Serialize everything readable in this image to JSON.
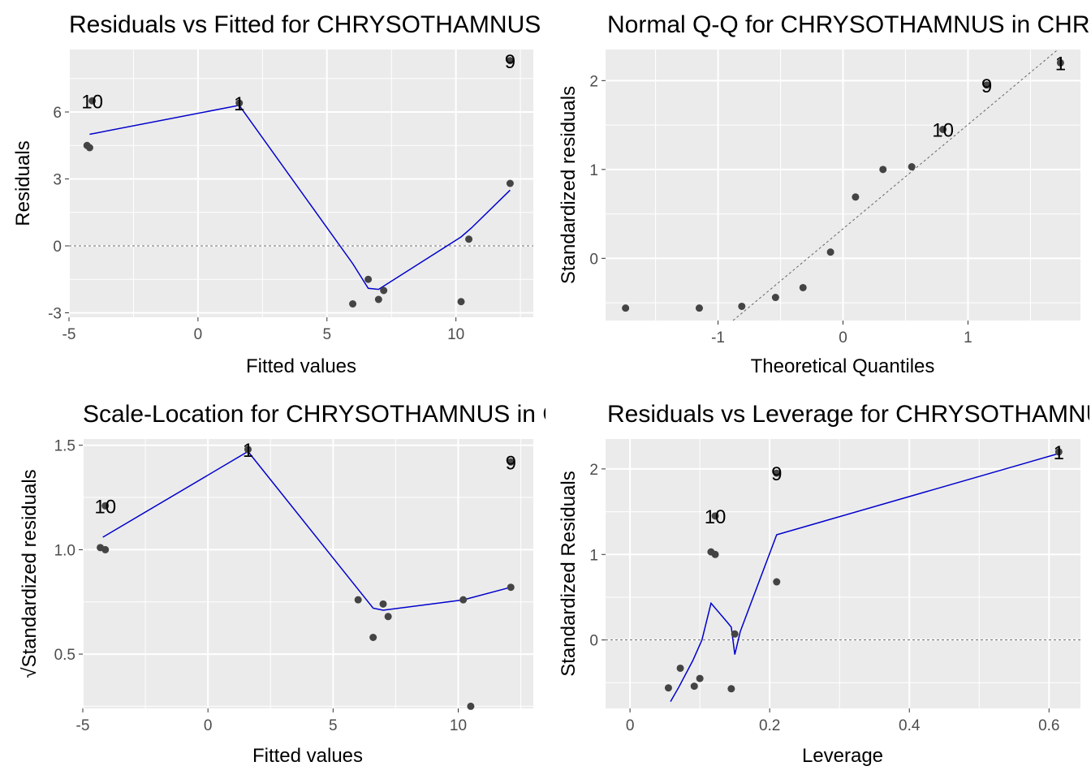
{
  "chart_data": [
    {
      "type": "scatter",
      "title": "Residuals vs Fitted for CHRYSOTHAMNUS in CHRYSOTHAMNUS",
      "xlabel": "Fitted values",
      "ylabel": "Residuals",
      "xlim": [
        -5,
        13
      ],
      "ylim": [
        -3.2,
        8.8
      ],
      "xticks": [
        -5,
        0,
        5,
        10
      ],
      "yticks": [
        -3,
        0,
        3,
        6
      ],
      "grid": true,
      "refline": {
        "type": "hline",
        "y": 0
      },
      "points": [
        {
          "x": -4.3,
          "y": 4.5
        },
        {
          "x": -4.2,
          "y": 4.4
        },
        {
          "x": -4.1,
          "y": 6.5,
          "label": "10"
        },
        {
          "x": 1.6,
          "y": 6.4,
          "label": "1"
        },
        {
          "x": 6.0,
          "y": -2.6
        },
        {
          "x": 6.6,
          "y": -1.5
        },
        {
          "x": 7.0,
          "y": -2.4
        },
        {
          "x": 7.2,
          "y": -2.0
        },
        {
          "x": 10.2,
          "y": -2.5
        },
        {
          "x": 10.5,
          "y": 0.3
        },
        {
          "x": 12.1,
          "y": 2.8
        },
        {
          "x": 12.1,
          "y": 8.3,
          "label": "9"
        }
      ],
      "smooth": [
        [
          -4.2,
          5.0
        ],
        [
          1.6,
          6.3
        ],
        [
          6.0,
          -0.8
        ],
        [
          6.6,
          -1.9
        ],
        [
          7.0,
          -1.95
        ],
        [
          10.2,
          0.4
        ],
        [
          10.6,
          0.8
        ],
        [
          12.1,
          2.5
        ]
      ]
    },
    {
      "type": "scatter",
      "title": "Normal Q-Q for CHRYSOTHAMNUS in CHRYSOTHAMNUS",
      "xlabel": "Theoretical Quantiles",
      "ylabel": "Standardized residuals",
      "xlim": [
        -1.9,
        1.9
      ],
      "ylim": [
        -0.7,
        2.35
      ],
      "xticks": [
        -1,
        0,
        1
      ],
      "yticks": [
        0,
        1,
        2
      ],
      "grid": true,
      "refline": {
        "type": "segment",
        "from": [
          -0.88,
          -0.7
        ],
        "to": [
          1.72,
          2.35
        ]
      },
      "points": [
        {
          "x": -1.74,
          "y": -0.56
        },
        {
          "x": -1.15,
          "y": -0.56
        },
        {
          "x": -0.81,
          "y": -0.54
        },
        {
          "x": -0.54,
          "y": -0.44
        },
        {
          "x": -0.32,
          "y": -0.33
        },
        {
          "x": -0.1,
          "y": 0.07
        },
        {
          "x": 0.1,
          "y": 0.69
        },
        {
          "x": 0.32,
          "y": 1.0
        },
        {
          "x": 0.55,
          "y": 1.03
        },
        {
          "x": 0.8,
          "y": 1.45,
          "label": "10"
        },
        {
          "x": 1.15,
          "y": 1.95,
          "label": "9"
        },
        {
          "x": 1.74,
          "y": 2.2,
          "label": "1"
        }
      ]
    },
    {
      "type": "scatter",
      "title": "Scale-Location for CHRYSOTHAMNUS in CHRYSOTHAMNUS",
      "xlabel": "Fitted values",
      "ylabel": "√Standardized residuals",
      "xlim": [
        -5,
        13
      ],
      "ylim": [
        0.24,
        1.53
      ],
      "xticks": [
        -5,
        0,
        5,
        10
      ],
      "yticks": [
        0.5,
        1.0,
        1.5
      ],
      "grid": true,
      "points": [
        {
          "x": -4.3,
          "y": 1.01
        },
        {
          "x": -4.1,
          "y": 1.0
        },
        {
          "x": -4.1,
          "y": 1.21,
          "label": "10"
        },
        {
          "x": 1.6,
          "y": 1.48,
          "label": "1"
        },
        {
          "x": 6.0,
          "y": 0.76
        },
        {
          "x": 6.6,
          "y": 0.58
        },
        {
          "x": 7.0,
          "y": 0.74
        },
        {
          "x": 7.2,
          "y": 0.68
        },
        {
          "x": 10.2,
          "y": 0.76
        },
        {
          "x": 10.5,
          "y": 0.25
        },
        {
          "x": 12.1,
          "y": 0.82
        },
        {
          "x": 12.1,
          "y": 1.42,
          "label": "9"
        }
      ],
      "smooth": [
        [
          -4.2,
          1.06
        ],
        [
          1.6,
          1.47
        ],
        [
          6.0,
          0.81
        ],
        [
          6.6,
          0.72
        ],
        [
          7.0,
          0.71
        ],
        [
          10.2,
          0.76
        ],
        [
          12.1,
          0.82
        ]
      ]
    },
    {
      "type": "scatter",
      "title": "Residuals vs Leverage for CHRYSOTHAMNUS in CHRYSOTHAMNUS",
      "xlabel": "Leverage",
      "ylabel": "Standardized Residuals",
      "xlim": [
        -0.035,
        0.645
      ],
      "ylim": [
        -0.8,
        2.35
      ],
      "xticks": [
        0.0,
        0.2,
        0.4,
        0.6
      ],
      "yticks": [
        0,
        1,
        2
      ],
      "grid": true,
      "refline": {
        "type": "hline",
        "y": 0
      },
      "points": [
        {
          "x": 0.055,
          "y": -0.56
        },
        {
          "x": 0.072,
          "y": -0.33
        },
        {
          "x": 0.092,
          "y": -0.54
        },
        {
          "x": 0.1,
          "y": -0.45
        },
        {
          "x": 0.116,
          "y": 1.03
        },
        {
          "x": 0.122,
          "y": 1.0
        },
        {
          "x": 0.122,
          "y": 1.45,
          "label": "10"
        },
        {
          "x": 0.145,
          "y": -0.57
        },
        {
          "x": 0.15,
          "y": 0.07
        },
        {
          "x": 0.21,
          "y": 0.68
        },
        {
          "x": 0.21,
          "y": 1.95,
          "label": "9"
        },
        {
          "x": 0.614,
          "y": 2.2,
          "label": "1"
        }
      ],
      "smooth": [
        [
          0.058,
          -0.72
        ],
        [
          0.07,
          -0.55
        ],
        [
          0.09,
          -0.24
        ],
        [
          0.103,
          0.0
        ],
        [
          0.116,
          0.43
        ],
        [
          0.14,
          0.2
        ],
        [
          0.145,
          0.15
        ],
        [
          0.15,
          -0.17
        ],
        [
          0.158,
          0.1
        ],
        [
          0.21,
          1.23
        ],
        [
          0.614,
          2.18
        ]
      ]
    }
  ]
}
